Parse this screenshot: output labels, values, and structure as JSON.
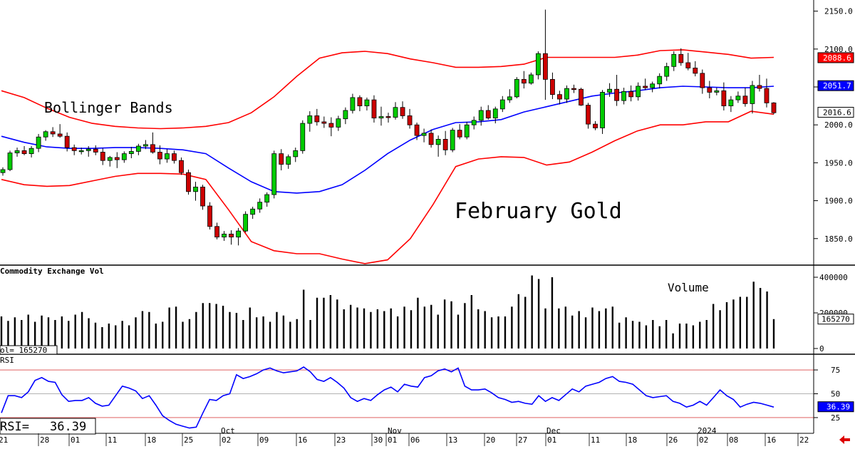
{
  "chart_data": [
    {
      "type": "candlestick",
      "title": "February Gold",
      "annotation": "Bollinger Bands",
      "ylim": [
        1815,
        2160
      ],
      "y_ticks": [
        "1850.0",
        "1900.0",
        "1950.0",
        "2000.0",
        "2050.0",
        "2100.0",
        "2150.0"
      ],
      "last_tags": {
        "upper": "2088.6",
        "middle": "2051.7",
        "last": "2016.6"
      },
      "colors": {
        "up": "#00cc00",
        "down": "#cc0000",
        "upper_band": "#ff0000",
        "middle_band": "#0000ff"
      },
      "ohlc": [
        [
          1937,
          1944,
          1933,
          1941
        ],
        [
          1941,
          1966,
          1939,
          1963
        ],
        [
          1963,
          1970,
          1958,
          1966
        ],
        [
          1966,
          1972,
          1960,
          1962
        ],
        [
          1962,
          1972,
          1957,
          1969
        ],
        [
          1969,
          1988,
          1964,
          1984
        ],
        [
          1984,
          1993,
          1979,
          1991
        ],
        [
          1991,
          1997,
          1984,
          1988
        ],
        [
          1988,
          2001,
          1983,
          1985
        ],
        [
          1985,
          1990,
          1965,
          1970
        ],
        [
          1970,
          1974,
          1960,
          1966
        ],
        [
          1966,
          1970,
          1961,
          1966
        ],
        [
          1966,
          1972,
          1958,
          1968
        ],
        [
          1968,
          1973,
          1960,
          1964
        ],
        [
          1964,
          1969,
          1947,
          1953
        ],
        [
          1953,
          1959,
          1945,
          1957
        ],
        [
          1957,
          1964,
          1943,
          1954
        ],
        [
          1954,
          1965,
          1950,
          1962
        ],
        [
          1962,
          1971,
          1956,
          1965
        ],
        [
          1965,
          1975,
          1960,
          1972
        ],
        [
          1972,
          1980,
          1968,
          1974
        ],
        [
          1974,
          1990,
          1962,
          1964
        ],
        [
          1964,
          1973,
          1948,
          1955
        ],
        [
          1955,
          1968,
          1950,
          1962
        ],
        [
          1962,
          1966,
          1949,
          1953
        ],
        [
          1953,
          1957,
          1934,
          1937
        ],
        [
          1937,
          1941,
          1908,
          1912
        ],
        [
          1912,
          1925,
          1900,
          1918
        ],
        [
          1918,
          1921,
          1888,
          1893
        ],
        [
          1893,
          1898,
          1862,
          1866
        ],
        [
          1866,
          1871,
          1849,
          1852
        ],
        [
          1852,
          1860,
          1847,
          1856
        ],
        [
          1856,
          1861,
          1842,
          1852
        ],
        [
          1852,
          1864,
          1841,
          1860
        ],
        [
          1860,
          1886,
          1858,
          1882
        ],
        [
          1882,
          1892,
          1876,
          1889
        ],
        [
          1889,
          1903,
          1884,
          1898
        ],
        [
          1898,
          1911,
          1892,
          1908
        ],
        [
          1908,
          1966,
          1903,
          1962
        ],
        [
          1962,
          1968,
          1940,
          1948
        ],
        [
          1948,
          1961,
          1942,
          1958
        ],
        [
          1958,
          1970,
          1951,
          1966
        ],
        [
          1966,
          2006,
          1962,
          2002
        ],
        [
          2002,
          2018,
          1991,
          2012
        ],
        [
          2012,
          2021,
          1999,
          2004
        ],
        [
          2004,
          2011,
          1996,
          2002
        ],
        [
          2002,
          2010,
          1985,
          1997
        ],
        [
          1997,
          2012,
          1992,
          2008
        ],
        [
          2008,
          2023,
          2001,
          2019
        ],
        [
          2019,
          2041,
          2015,
          2036
        ],
        [
          2036,
          2039,
          2018,
          2025
        ],
        [
          2025,
          2036,
          2019,
          2033
        ],
        [
          2033,
          2039,
          2003,
          2009
        ],
        [
          2009,
          2024,
          1999,
          2011
        ],
        [
          2011,
          2016,
          2003,
          2010
        ],
        [
          2010,
          2030,
          2007,
          2023
        ],
        [
          2023,
          2031,
          2008,
          2012
        ],
        [
          2012,
          2021,
          1995,
          2000
        ],
        [
          2000,
          2003,
          1980,
          1986
        ],
        [
          1986,
          1995,
          1977,
          1989
        ],
        [
          1989,
          1994,
          1970,
          1974
        ],
        [
          1974,
          1986,
          1958,
          1981
        ],
        [
          1981,
          1992,
          1960,
          1967
        ],
        [
          1967,
          1996,
          1964,
          1993
        ],
        [
          1993,
          2001,
          1981,
          1984
        ],
        [
          1984,
          2004,
          1981,
          2000
        ],
        [
          2000,
          2011,
          1994,
          2006
        ],
        [
          2006,
          2024,
          1999,
          2019
        ],
        [
          2019,
          2026,
          2007,
          2009
        ],
        [
          2009,
          2024,
          2002,
          2021
        ],
        [
          2021,
          2038,
          2017,
          2033
        ],
        [
          2033,
          2047,
          2029,
          2037
        ],
        [
          2037,
          2063,
          2035,
          2060
        ],
        [
          2060,
          2071,
          2048,
          2055
        ],
        [
          2055,
          2069,
          2053,
          2066
        ],
        [
          2066,
          2097,
          2060,
          2094
        ],
        [
          2094,
          2152,
          2033,
          2060
        ],
        [
          2060,
          2069,
          2034,
          2040
        ],
        [
          2040,
          2045,
          2027,
          2034
        ],
        [
          2034,
          2052,
          2029,
          2048
        ],
        [
          2048,
          2053,
          2042,
          2047
        ],
        [
          2047,
          2049,
          2025,
          2026
        ],
        [
          2026,
          2029,
          1995,
          2001
        ],
        [
          2001,
          2005,
          1993,
          1996
        ],
        [
          1996,
          2046,
          1988,
          2043
        ],
        [
          2043,
          2055,
          2037,
          2047
        ],
        [
          2047,
          2066,
          2025,
          2032
        ],
        [
          2032,
          2049,
          2027,
          2044
        ],
        [
          2044,
          2052,
          2031,
          2037
        ],
        [
          2037,
          2056,
          2032,
          2051
        ],
        [
          2051,
          2061,
          2046,
          2049
        ],
        [
          2049,
          2057,
          2043,
          2054
        ],
        [
          2054,
          2068,
          2048,
          2064
        ],
        [
          2064,
          2082,
          2058,
          2077
        ],
        [
          2077,
          2097,
          2071,
          2093
        ],
        [
          2093,
          2101,
          2078,
          2082
        ],
        [
          2082,
          2095,
          2072,
          2075
        ],
        [
          2075,
          2084,
          2064,
          2068
        ],
        [
          2068,
          2073,
          2041,
          2049
        ],
        [
          2049,
          2058,
          2035,
          2043
        ],
        [
          2043,
          2049,
          2039,
          2045
        ],
        [
          2045,
          2056,
          2019,
          2025
        ],
        [
          2025,
          2038,
          2017,
          2033
        ],
        [
          2033,
          2044,
          2029,
          2038
        ],
        [
          2038,
          2049,
          2024,
          2028
        ],
        [
          2028,
          2058,
          2015,
          2052
        ],
        [
          2052,
          2066,
          2044,
          2048
        ],
        [
          2048,
          2061,
          2023,
          2029
        ],
        [
          2029,
          2030,
          2014,
          2016
        ]
      ],
      "bollinger": {
        "upper": [
          2045,
          2036,
          2022,
          2010,
          2002,
          1998,
          1996,
          1995,
          1996,
          1998,
          2003,
          2016,
          2037,
          2064,
          2088,
          2095,
          2097,
          2094,
          2087,
          2082,
          2076,
          2076,
          2077,
          2080,
          2089,
          2089,
          2089,
          2089,
          2092,
          2098,
          2099,
          2096,
          2093,
          2088,
          2089
        ],
        "middle": [
          1985,
          1977,
          1971,
          1969,
          1969,
          1970,
          1970,
          1969,
          1967,
          1962,
          1943,
          1925,
          1912,
          1910,
          1912,
          1921,
          1940,
          1962,
          1980,
          1994,
          2003,
          2004,
          2007,
          2017,
          2024,
          2031,
          2038,
          2042,
          2045,
          2049,
          2051,
          2050,
          2049,
          2049,
          2051
        ],
        "lower": [
          1928,
          1921,
          1919,
          1920,
          1926,
          1932,
          1936,
          1936,
          1935,
          1928,
          1888,
          1846,
          1834,
          1830,
          1830,
          1823,
          1817,
          1822,
          1850,
          1895,
          1945,
          1955,
          1958,
          1957,
          1947,
          1951,
          1964,
          1979,
          1992,
          2000,
          2000,
          2004,
          2004,
          2018,
          2014
        ]
      }
    },
    {
      "type": "bar",
      "title": "Commodity Exchange Vol",
      "annotation": "Volume",
      "readout": "ol=    165270",
      "last_tag": "165270",
      "ylim": [
        0,
        460000
      ],
      "y_ticks": [
        "0",
        "200000",
        "400000"
      ],
      "values": [
        180000,
        155000,
        175000,
        160000,
        190000,
        150000,
        185000,
        175000,
        160000,
        180000,
        155000,
        190000,
        205000,
        170000,
        145000,
        120000,
        140000,
        130000,
        155000,
        130000,
        175000,
        210000,
        205000,
        140000,
        150000,
        230000,
        235000,
        150000,
        165000,
        205000,
        255000,
        255000,
        250000,
        240000,
        205000,
        200000,
        160000,
        230000,
        175000,
        180000,
        150000,
        205000,
        185000,
        150000,
        165000,
        330000,
        160000,
        285000,
        285000,
        300000,
        275000,
        220000,
        245000,
        230000,
        225000,
        205000,
        220000,
        210000,
        225000,
        180000,
        235000,
        215000,
        285000,
        235000,
        245000,
        190000,
        275000,
        265000,
        190000,
        255000,
        300000,
        220000,
        210000,
        175000,
        180000,
        180000,
        235000,
        305000,
        290000,
        410000,
        390000,
        225000,
        400000,
        225000,
        235000,
        185000,
        210000,
        175000,
        230000,
        210000,
        225000,
        235000,
        145000,
        175000,
        155000,
        150000,
        130000,
        160000,
        125000,
        160000,
        85000,
        140000,
        140000,
        130000,
        150000,
        160000,
        250000,
        215000,
        260000,
        275000,
        290000,
        290000,
        375000,
        340000,
        320000,
        165000
      ]
    },
    {
      "type": "line",
      "title": "RSI",
      "readout_label": "RSI=",
      "readout_value": "36.39",
      "last_tag": "36.39",
      "ylim": [
        10,
        90
      ],
      "y_ticks": [
        "25",
        "50",
        "75"
      ],
      "reference_lines": [
        25,
        50,
        75
      ],
      "values": [
        30,
        48,
        48,
        46,
        52,
        64,
        67,
        63,
        62,
        49,
        42,
        43,
        43,
        46,
        40,
        37,
        38,
        48,
        58,
        56,
        53,
        45,
        48,
        38,
        27,
        22,
        18,
        16,
        14,
        15,
        30,
        44,
        43,
        48,
        50,
        70,
        66,
        68,
        71,
        75,
        77,
        74,
        72,
        73,
        74,
        78,
        73,
        65,
        63,
        67,
        62,
        56,
        46,
        42,
        45,
        43,
        49,
        54,
        57,
        52,
        60,
        58,
        57,
        67,
        69,
        74,
        76,
        73,
        77,
        58,
        54,
        54,
        55,
        51,
        46,
        44,
        41,
        42,
        40,
        39,
        48,
        42,
        46,
        43,
        49,
        55,
        52,
        58,
        60,
        62,
        66,
        68,
        63,
        62,
        60,
        54,
        48,
        46,
        47,
        48,
        42,
        40,
        36,
        38,
        42,
        38,
        46,
        54,
        48,
        44,
        36,
        39,
        41,
        40,
        38,
        36
      ]
    }
  ],
  "x_axis": {
    "day_labels": [
      "21",
      "28",
      "01",
      "11",
      "18",
      "25",
      "02",
      "09",
      "16",
      "23",
      "30",
      "01",
      "06",
      "13",
      "20",
      "27",
      "01",
      "11",
      "18",
      "26",
      "02",
      "08",
      "16",
      "22"
    ],
    "month_labels": [
      "Oct",
      "Nov",
      "Dec",
      "2024"
    ]
  },
  "ui": {
    "back_arrow_icon": "left-arrow-icon",
    "arrow_color": "#dd0000"
  }
}
